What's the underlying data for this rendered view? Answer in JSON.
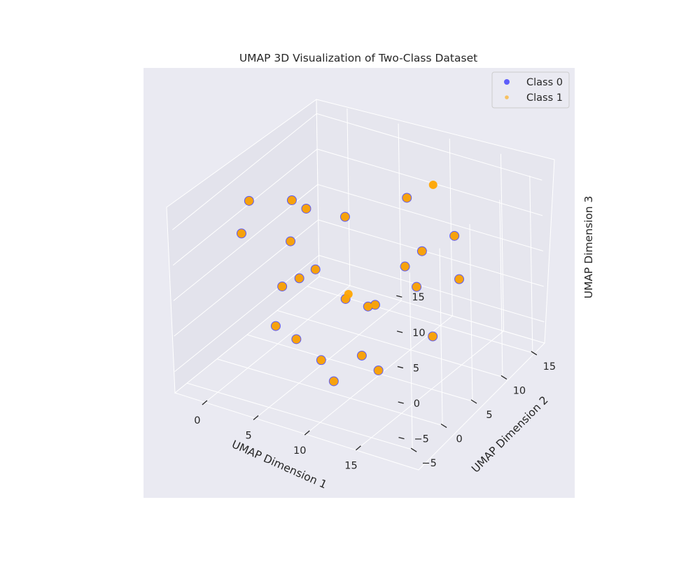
{
  "chart_data": {
    "type": "scatter",
    "projection": "3d",
    "title": "UMAP 3D Visualization of Two-Class Dataset",
    "xlabel": "UMAP Dimension 1",
    "ylabel": "UMAP Dimension 2",
    "zlabel": "UMAP Dimension 3",
    "xlim": [
      -3,
      19
    ],
    "ylim": [
      -7,
      17
    ],
    "zlim": [
      -8,
      17
    ],
    "x_ticks": [
      0,
      5,
      10,
      15
    ],
    "y_ticks": [
      -5,
      0,
      5,
      10,
      15
    ],
    "z_ticks": [
      -5,
      0,
      5,
      10,
      15
    ],
    "x_tick_labels": [
      "0",
      "5",
      "10",
      "15"
    ],
    "y_tick_labels": [
      "−5",
      "0",
      "5",
      "10",
      "15"
    ],
    "z_tick_labels": [
      "−5",
      "0",
      "5",
      "10",
      "15"
    ],
    "grid": true,
    "legend_position": "top-right",
    "colors": {
      "pane": "#e1e1ea",
      "background": "#eaeaf2",
      "class_0": "#0000ff",
      "class_1": "#ffa500"
    },
    "series": [
      {
        "name": "Class 0",
        "color": "#0000ff",
        "alpha": 0.6,
        "points": [
          [
            -2.0,
            4.0,
            12.0
          ],
          [
            -2.2,
            3.0,
            8.0
          ],
          [
            1.0,
            6.0,
            12.0
          ],
          [
            1.5,
            7.5,
            10.0
          ],
          [
            2.0,
            4.0,
            8.0
          ],
          [
            5.0,
            8.0,
            10.0
          ],
          [
            9.0,
            11.5,
            12.0
          ],
          [
            11.0,
            10.5,
            6.0
          ],
          [
            10.5,
            8.5,
            5.0
          ],
          [
            14.5,
            10.0,
            10.0
          ],
          [
            15.5,
            9.0,
            5.0
          ],
          [
            12.5,
            7.0,
            4.0
          ],
          [
            5.0,
            3.0,
            6.0
          ],
          [
            4.0,
            2.0,
            5.0
          ],
          [
            3.5,
            0.0,
            5.0
          ],
          [
            9.5,
            4.0,
            2.0
          ],
          [
            10.5,
            3.5,
            3.0
          ],
          [
            15.5,
            4.5,
            0.0
          ],
          [
            11.5,
            -0.5,
            -1.0
          ],
          [
            6.0,
            -2.0,
            0.0
          ],
          [
            4.0,
            -2.0,
            1.0
          ],
          [
            9.0,
            -3.0,
            -1.0
          ],
          [
            10.5,
            -3.5,
            -3.0
          ],
          [
            14.0,
            -2.0,
            -1.0
          ],
          [
            8.5,
            2.0,
            4.0
          ]
        ]
      },
      {
        "name": "Class 1",
        "color": "#ffa500",
        "alpha": 0.6,
        "points": [
          [
            -2.0,
            4.0,
            12.0
          ],
          [
            -2.2,
            3.0,
            8.0
          ],
          [
            1.0,
            6.0,
            12.0
          ],
          [
            1.5,
            7.5,
            10.0
          ],
          [
            2.0,
            4.0,
            8.0
          ],
          [
            5.0,
            8.0,
            10.0
          ],
          [
            9.0,
            11.5,
            12.0
          ],
          [
            11.0,
            10.5,
            6.0
          ],
          [
            10.5,
            8.5,
            5.0
          ],
          [
            14.5,
            10.0,
            10.0
          ],
          [
            15.5,
            9.0,
            5.0
          ],
          [
            12.5,
            7.0,
            4.0
          ],
          [
            5.0,
            3.0,
            6.0
          ],
          [
            4.0,
            2.0,
            5.0
          ],
          [
            3.5,
            0.0,
            5.0
          ],
          [
            9.5,
            4.0,
            2.0
          ],
          [
            10.5,
            3.5,
            3.0
          ],
          [
            15.5,
            4.5,
            0.0
          ],
          [
            11.5,
            -0.5,
            -1.0
          ],
          [
            6.0,
            -2.0,
            0.0
          ],
          [
            4.0,
            -2.0,
            1.0
          ],
          [
            9.0,
            -3.0,
            -1.0
          ],
          [
            10.5,
            -3.5,
            -3.0
          ],
          [
            14.0,
            -2.0,
            -1.0
          ],
          [
            8.5,
            2.0,
            4.0
          ],
          [
            11.0,
            12.5,
            14.0
          ],
          [
            7.0,
            5.0,
            2.0
          ]
        ]
      }
    ]
  }
}
